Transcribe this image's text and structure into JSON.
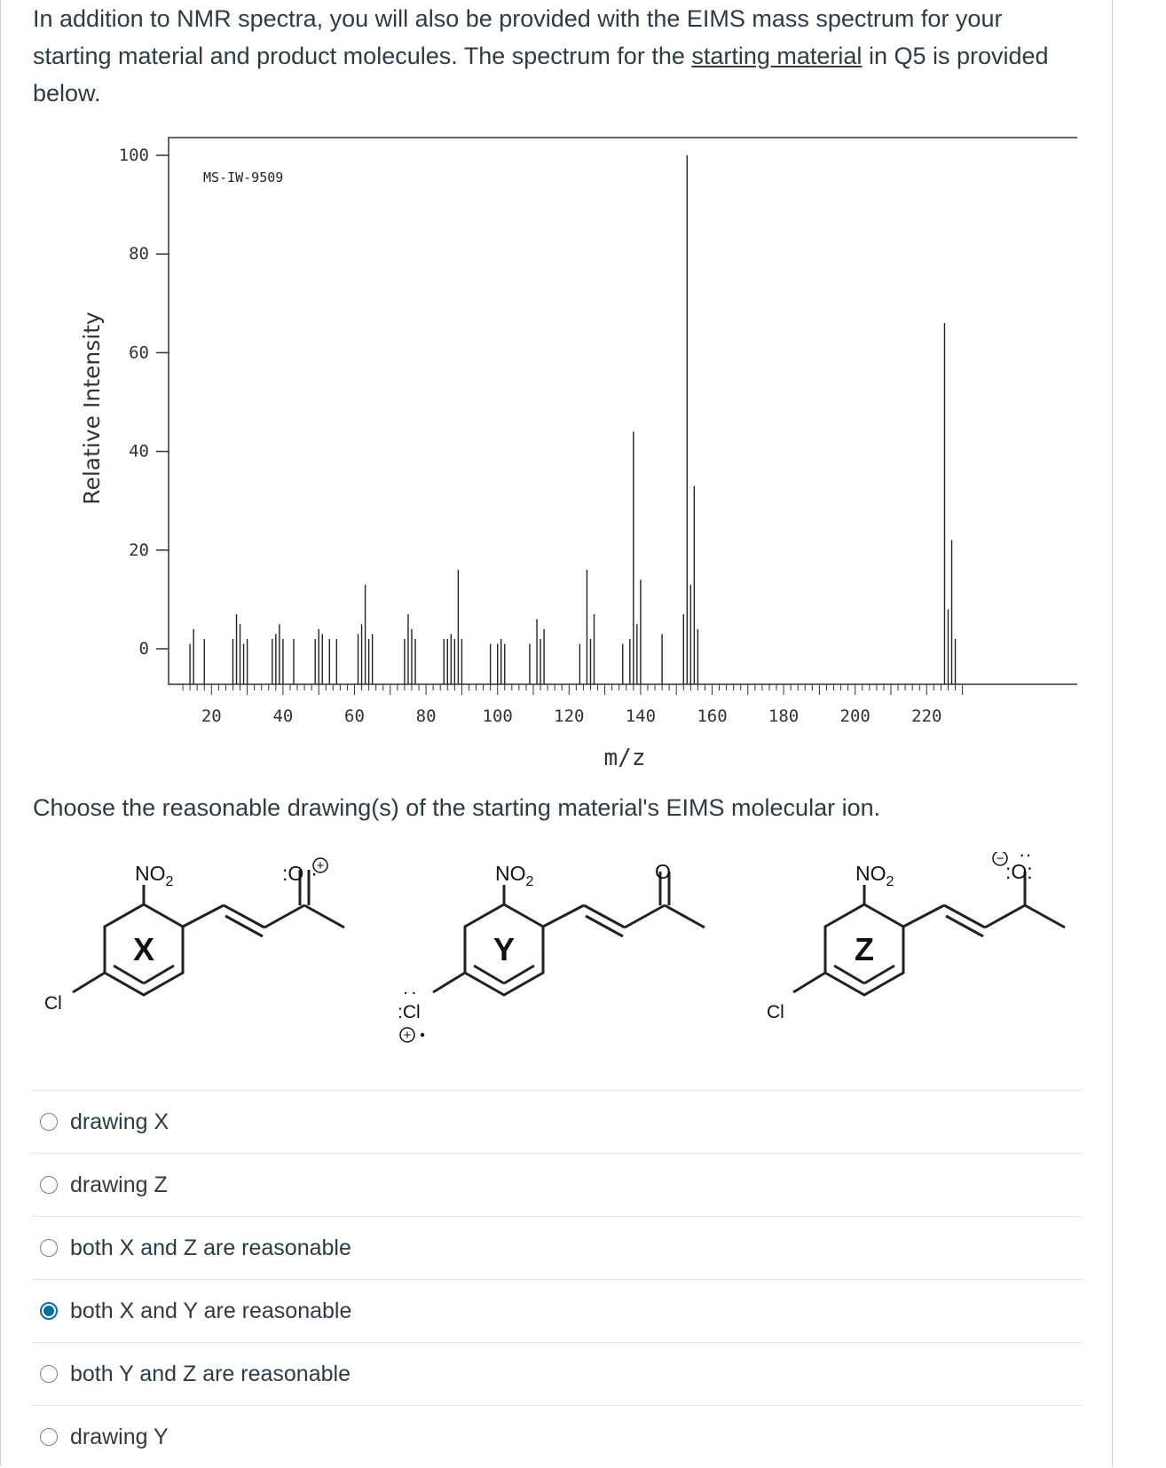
{
  "intro": {
    "part1": "In addition to NMR spectra, you will also be provided with the EIMS mass spectrum for your starting material and product molecules. The spectrum for the ",
    "underlined": "starting material",
    "part2": " in Q5 is provided below."
  },
  "question": "Choose the reasonable drawing(s) of the starting material's EIMS molecular ion.",
  "chart_data": {
    "type": "bar",
    "title": "MS-IW-9509",
    "xlabel": "m/z",
    "ylabel": "Relative Intensity",
    "xlim": [
      10,
      230
    ],
    "ylim": [
      0,
      100
    ],
    "xticks": [
      20,
      40,
      60,
      80,
      100,
      120,
      140,
      160,
      180,
      200,
      220
    ],
    "yticks": [
      0,
      20,
      40,
      60,
      80,
      100
    ],
    "peaks": [
      {
        "x": 14,
        "y": 1
      },
      {
        "x": 15,
        "y": 4
      },
      {
        "x": 18,
        "y": 2
      },
      {
        "x": 26,
        "y": 2
      },
      {
        "x": 27,
        "y": 7
      },
      {
        "x": 28,
        "y": 5
      },
      {
        "x": 29,
        "y": 1
      },
      {
        "x": 30,
        "y": 2
      },
      {
        "x": 37,
        "y": 2
      },
      {
        "x": 38,
        "y": 3
      },
      {
        "x": 39,
        "y": 5
      },
      {
        "x": 40,
        "y": 2
      },
      {
        "x": 43,
        "y": 2
      },
      {
        "x": 49,
        "y": 2
      },
      {
        "x": 50,
        "y": 4
      },
      {
        "x": 51,
        "y": 3
      },
      {
        "x": 53,
        "y": 2
      },
      {
        "x": 55,
        "y": 2
      },
      {
        "x": 61,
        "y": 3
      },
      {
        "x": 62,
        "y": 5
      },
      {
        "x": 63,
        "y": 13
      },
      {
        "x": 64,
        "y": 2
      },
      {
        "x": 65,
        "y": 3
      },
      {
        "x": 74,
        "y": 2
      },
      {
        "x": 75,
        "y": 7
      },
      {
        "x": 76,
        "y": 4
      },
      {
        "x": 77,
        "y": 2
      },
      {
        "x": 85,
        "y": 2
      },
      {
        "x": 86,
        "y": 2
      },
      {
        "x": 87,
        "y": 3
      },
      {
        "x": 88,
        "y": 2
      },
      {
        "x": 89,
        "y": 16
      },
      {
        "x": 90,
        "y": 2
      },
      {
        "x": 98,
        "y": 1
      },
      {
        "x": 100,
        "y": 1
      },
      {
        "x": 101,
        "y": 2
      },
      {
        "x": 102,
        "y": 1
      },
      {
        "x": 109,
        "y": 1
      },
      {
        "x": 111,
        "y": 6
      },
      {
        "x": 112,
        "y": 2
      },
      {
        "x": 113,
        "y": 4
      },
      {
        "x": 123,
        "y": 1
      },
      {
        "x": 125,
        "y": 16
      },
      {
        "x": 126,
        "y": 2
      },
      {
        "x": 127,
        "y": 7
      },
      {
        "x": 135,
        "y": 1
      },
      {
        "x": 137,
        "y": 2
      },
      {
        "x": 138,
        "y": 44
      },
      {
        "x": 139,
        "y": 5
      },
      {
        "x": 140,
        "y": 14
      },
      {
        "x": 146,
        "y": 3
      },
      {
        "x": 152,
        "y": 7
      },
      {
        "x": 153,
        "y": 100
      },
      {
        "x": 154,
        "y": 13
      },
      {
        "x": 155,
        "y": 33
      },
      {
        "x": 156,
        "y": 4
      },
      {
        "x": 225,
        "y": 66
      },
      {
        "x": 226,
        "y": 8
      },
      {
        "x": 227,
        "y": 22
      },
      {
        "x": 228,
        "y": 2
      }
    ]
  },
  "structures": {
    "x": {
      "letter": "X",
      "no2": "NO",
      "no2_sub": "2",
      "cl": "Cl",
      "o": ":O",
      "o_dots": "·",
      "o_charge": "+"
    },
    "y": {
      "letter": "Y",
      "no2": "NO",
      "no2_sub": "2",
      "cl": ":Cl",
      "cl_dots": ":",
      "cl_charge": "+",
      "o": "O"
    },
    "z": {
      "letter": "Z",
      "no2": "NO",
      "no2_sub": "2",
      "cl": "Cl",
      "o": ":O:",
      "o_dots": "··",
      "o_charge": "−"
    }
  },
  "answers": [
    {
      "label": "drawing X",
      "checked": false
    },
    {
      "label": "drawing Z",
      "checked": false
    },
    {
      "label": "both X and Z are reasonable",
      "checked": false
    },
    {
      "label": "both X and Y are reasonable",
      "checked": true
    },
    {
      "label": "both Y and Z are reasonable",
      "checked": false
    },
    {
      "label": "drawing Y",
      "checked": false
    }
  ]
}
